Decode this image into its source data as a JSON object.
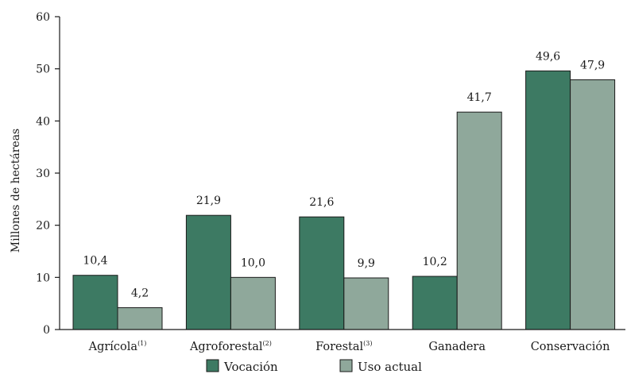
{
  "chart_data": {
    "type": "bar",
    "title": "",
    "xlabel": "",
    "ylabel": "Millones de hectáreas",
    "ylim": [
      0,
      60
    ],
    "yticks": [
      "0",
      "10",
      "20",
      "30",
      "40",
      "50",
      "60"
    ],
    "grid": false,
    "legend_position": "bottom",
    "categories": [
      {
        "label": "Agrícola",
        "note": "(1)"
      },
      {
        "label": "Agroforestal",
        "note": "(2)"
      },
      {
        "label": "Forestal",
        "note": "(3)"
      },
      {
        "label": "Ganadera",
        "note": ""
      },
      {
        "label": "Conservación",
        "note": ""
      }
    ],
    "series": [
      {
        "name": "Vocación",
        "color": "#3d7a63",
        "values": [
          10.4,
          21.9,
          21.6,
          10.2,
          49.6
        ],
        "value_labels": [
          "10,4",
          "21,9",
          "21,6",
          "10,2",
          "49,6"
        ]
      },
      {
        "name": "Uso actual",
        "color": "#8fa89b",
        "values": [
          4.2,
          10.0,
          9.9,
          41.7,
          47.9
        ],
        "value_labels": [
          "4,2",
          "10,0",
          "9,9",
          "41,7",
          "47,9"
        ]
      }
    ]
  }
}
